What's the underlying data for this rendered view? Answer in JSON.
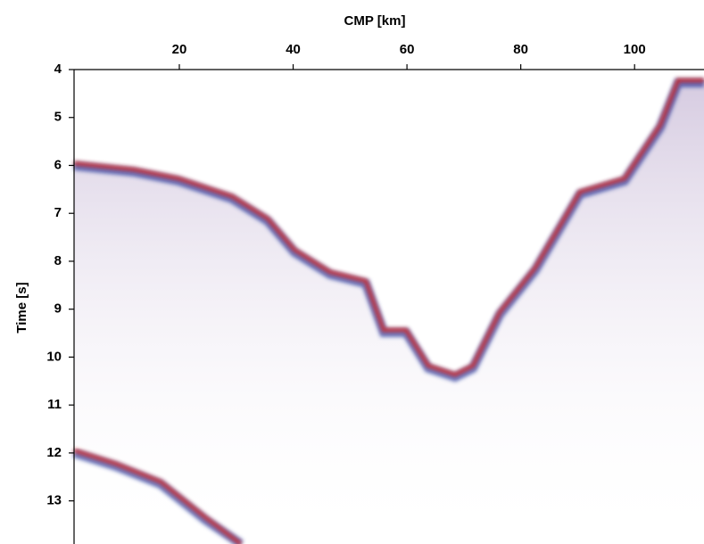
{
  "chart_data": {
    "type": "image",
    "xlabel": "CMP [km]",
    "ylabel": "Time [s]",
    "xlim": [
      1.5,
      112.2
    ],
    "xticks": [
      20,
      40,
      60,
      80,
      100
    ],
    "ylim": [
      4,
      13.9
    ],
    "yticks": [
      4,
      5,
      6,
      7,
      8,
      9,
      10,
      11,
      12,
      13
    ],
    "y_inverted": true,
    "x_axis_position": "top"
  }
}
